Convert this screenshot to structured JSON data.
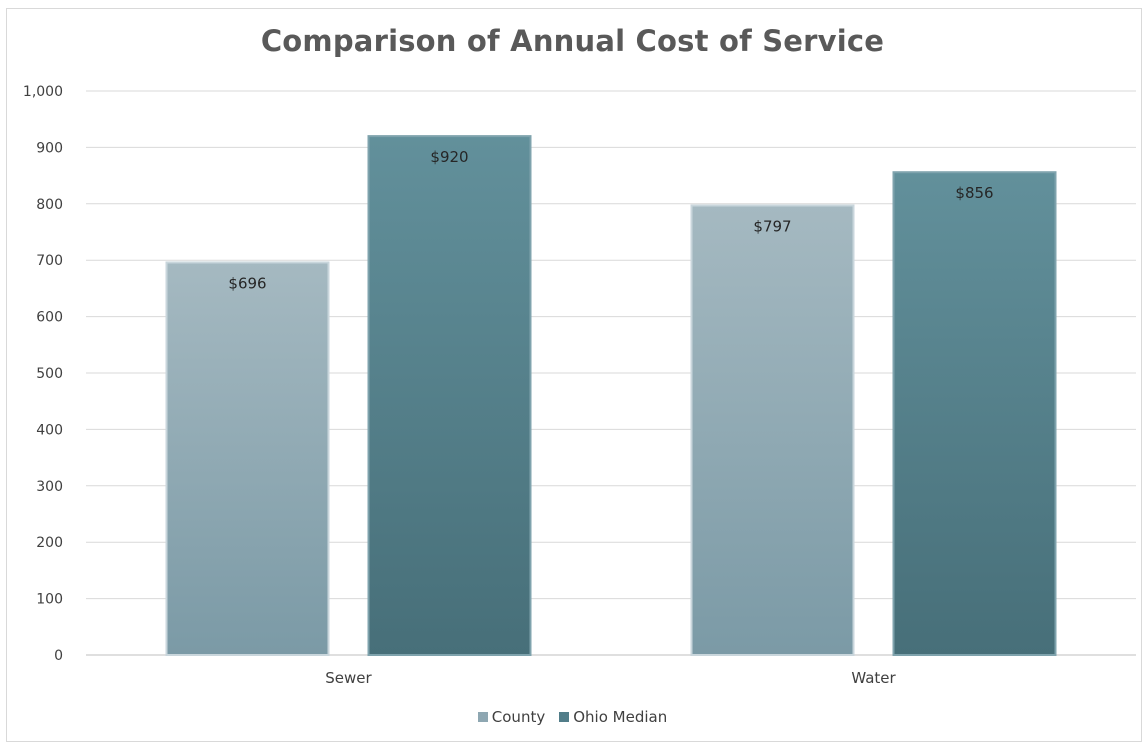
{
  "chart_data": {
    "type": "bar",
    "title": "Comparison of Annual Cost of Service",
    "categories": [
      "Sewer",
      "Water"
    ],
    "series": [
      {
        "name": "County",
        "values": [
          696,
          797
        ],
        "labels": [
          "$696",
          "$797"
        ],
        "color": "#8ea7b2"
      },
      {
        "name": "Ohio Median",
        "values": [
          920,
          856
        ],
        "labels": [
          "$920",
          "$856"
        ],
        "color": "#517d89"
      }
    ],
    "ylim": [
      0,
      1000
    ],
    "yticks": [
      "0",
      "100",
      "200",
      "300",
      "400",
      "500",
      "600",
      "700",
      "800",
      "900",
      "1,000"
    ],
    "xlabel": "",
    "ylabel": "",
    "grid": true,
    "legend_position": "bottom"
  }
}
